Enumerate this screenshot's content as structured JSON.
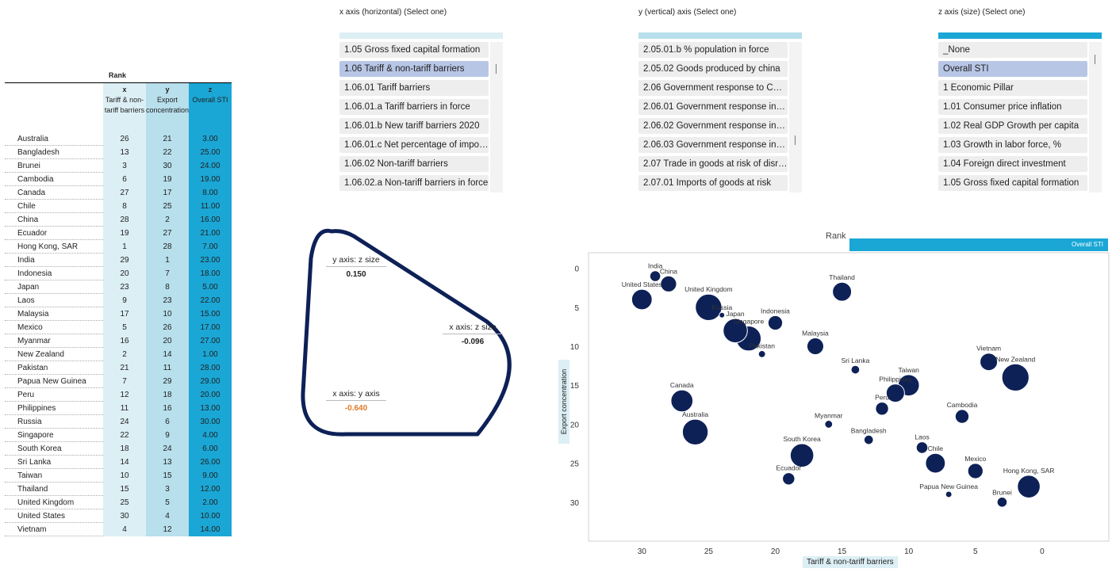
{
  "rank_table": {
    "title": "Rank",
    "headers": {
      "x": {
        "key": "x",
        "label": "Tariff & non-tariff barriers"
      },
      "y": {
        "key": "y",
        "label": "Export concentration"
      },
      "z": {
        "key": "z",
        "label": "Overall STI"
      }
    },
    "rows": [
      {
        "name": "Australia",
        "x": "26",
        "y": "21",
        "z": "3.00"
      },
      {
        "name": "Bangladesh",
        "x": "13",
        "y": "22",
        "z": "25.00"
      },
      {
        "name": "Brunei",
        "x": "3",
        "y": "30",
        "z": "24.00"
      },
      {
        "name": "Cambodia",
        "x": "6",
        "y": "19",
        "z": "19.00"
      },
      {
        "name": "Canada",
        "x": "27",
        "y": "17",
        "z": "8.00"
      },
      {
        "name": "Chile",
        "x": "8",
        "y": "25",
        "z": "11.00"
      },
      {
        "name": "China",
        "x": "28",
        "y": "2",
        "z": "16.00"
      },
      {
        "name": "Ecuador",
        "x": "19",
        "y": "27",
        "z": "21.00"
      },
      {
        "name": "Hong Kong, SAR",
        "x": "1",
        "y": "28",
        "z": "7.00"
      },
      {
        "name": "India",
        "x": "29",
        "y": "1",
        "z": "23.00"
      },
      {
        "name": "Indonesia",
        "x": "20",
        "y": "7",
        "z": "18.00"
      },
      {
        "name": "Japan",
        "x": "23",
        "y": "8",
        "z": "5.00"
      },
      {
        "name": "Laos",
        "x": "9",
        "y": "23",
        "z": "22.00"
      },
      {
        "name": "Malaysia",
        "x": "17",
        "y": "10",
        "z": "15.00"
      },
      {
        "name": "Mexico",
        "x": "5",
        "y": "26",
        "z": "17.00"
      },
      {
        "name": "Myanmar",
        "x": "16",
        "y": "20",
        "z": "27.00"
      },
      {
        "name": "New Zealand",
        "x": "2",
        "y": "14",
        "z": "1.00"
      },
      {
        "name": "Pakistan",
        "x": "21",
        "y": "11",
        "z": "28.00"
      },
      {
        "name": "Papua New Guinea",
        "x": "7",
        "y": "29",
        "z": "29.00"
      },
      {
        "name": "Peru",
        "x": "12",
        "y": "18",
        "z": "20.00"
      },
      {
        "name": "Philippines",
        "x": "11",
        "y": "16",
        "z": "13.00"
      },
      {
        "name": "Russia",
        "x": "24",
        "y": "6",
        "z": "30.00"
      },
      {
        "name": "Singapore",
        "x": "22",
        "y": "9",
        "z": "4.00"
      },
      {
        "name": "South Korea",
        "x": "18",
        "y": "24",
        "z": "6.00"
      },
      {
        "name": "Sri Lanka",
        "x": "14",
        "y": "13",
        "z": "26.00"
      },
      {
        "name": "Taiwan",
        "x": "10",
        "y": "15",
        "z": "9.00"
      },
      {
        "name": "Thailand",
        "x": "15",
        "y": "3",
        "z": "12.00"
      },
      {
        "name": "United Kingdom",
        "x": "25",
        "y": "5",
        "z": "2.00"
      },
      {
        "name": "United States",
        "x": "30",
        "y": "4",
        "z": "10.00"
      },
      {
        "name": "Vietnam",
        "x": "4",
        "y": "12",
        "z": "14.00"
      }
    ]
  },
  "selectors": {
    "x": {
      "title": "x axis (horizontal) (Select one)",
      "items": [
        "1.05 Gross fixed capital formation",
        "1.06 Tariff & non-tariff barriers",
        "1.06.01 Tariff barriers",
        "1.06.01.a Tariff barriers in force",
        "1.06.01.b New tariff barriers 2020",
        "1.06.01.c Net percentage of imports",
        "1.06.02 Non-tariff barriers",
        "1.06.02.a Non-tariff barriers in force"
      ],
      "selected": 1
    },
    "y": {
      "title": "y (vertical) axis (Select one)",
      "items": [
        "2.05.01.b % population in force",
        "2.05.02 Goods produced by china",
        "2.06 Government response to COVID",
        "2.06.01 Government response index",
        "2.06.02 Government response index",
        "2.06.03 Government response index",
        "2.07 Trade in goods at risk of disruption",
        "2.07.01 Imports of goods at risk"
      ],
      "selected": -1
    },
    "z": {
      "title": "z axis (size) (Select one)",
      "items": [
        "_None",
        "Overall STI",
        "1 Economic Pillar",
        "1.01 Consumer price inflation",
        "1.02 Real GDP Growth per capita",
        "1.03 Growth in labor force, %",
        "1.04 Foreign direct investment",
        "1.05 Gross fixed capital formation"
      ],
      "selected": 1
    }
  },
  "correlations": {
    "yz": {
      "label": "y axis: z size",
      "value": "0.150"
    },
    "xz": {
      "label": "x axis: z size",
      "value": "-0.096"
    },
    "xy": {
      "label": "x axis: y axis",
      "value": "-0.640"
    }
  },
  "colors": {
    "bubble": "#0d2157",
    "highlight": "#e07b28",
    "accent": "#1aa7d6",
    "light": "#dceff5",
    "mid": "#b8dfec"
  },
  "chart_data": {
    "type": "scatter",
    "header": "Rank",
    "size_label": "Overall STI",
    "xlabel": "Tariff & non-tariff barriers",
    "ylabel": "Export concentration",
    "xlim": [
      34,
      -5
    ],
    "ylim": [
      -2,
      35
    ],
    "xticks": [
      30,
      25,
      20,
      15,
      10,
      5,
      0
    ],
    "yticks": [
      0,
      5,
      10,
      15,
      20,
      25,
      30
    ],
    "points": [
      {
        "label": "Australia",
        "x": 26,
        "y": 21,
        "z": 3
      },
      {
        "label": "Bangladesh",
        "x": 13,
        "y": 22,
        "z": 25
      },
      {
        "label": "Brunei",
        "x": 3,
        "y": 30,
        "z": 24
      },
      {
        "label": "Cambodia",
        "x": 6,
        "y": 19,
        "z": 19
      },
      {
        "label": "Canada",
        "x": 27,
        "y": 17,
        "z": 8
      },
      {
        "label": "Chile",
        "x": 8,
        "y": 25,
        "z": 11
      },
      {
        "label": "China",
        "x": 28,
        "y": 2,
        "z": 16
      },
      {
        "label": "Ecuador",
        "x": 19,
        "y": 27,
        "z": 21
      },
      {
        "label": "Hong Kong, SAR",
        "x": 1,
        "y": 28,
        "z": 7
      },
      {
        "label": "India",
        "x": 29,
        "y": 1,
        "z": 23
      },
      {
        "label": "Indonesia",
        "x": 20,
        "y": 7,
        "z": 18
      },
      {
        "label": "Japan",
        "x": 23,
        "y": 8,
        "z": 5
      },
      {
        "label": "Laos",
        "x": 9,
        "y": 23,
        "z": 22
      },
      {
        "label": "Malaysia",
        "x": 17,
        "y": 10,
        "z": 15
      },
      {
        "label": "Mexico",
        "x": 5,
        "y": 26,
        "z": 17
      },
      {
        "label": "Myanmar",
        "x": 16,
        "y": 20,
        "z": 27
      },
      {
        "label": "New Zealand",
        "x": 2,
        "y": 14,
        "z": 1
      },
      {
        "label": "Pakistan",
        "x": 21,
        "y": 11,
        "z": 28
      },
      {
        "label": "Papua New Guinea",
        "x": 7,
        "y": 29,
        "z": 29
      },
      {
        "label": "Peru",
        "x": 12,
        "y": 18,
        "z": 20
      },
      {
        "label": "Philippines",
        "x": 11,
        "y": 16,
        "z": 13
      },
      {
        "label": "Russia",
        "x": 24,
        "y": 6,
        "z": 30
      },
      {
        "label": "Singapore",
        "x": 22,
        "y": 9,
        "z": 4
      },
      {
        "label": "South Korea",
        "x": 18,
        "y": 24,
        "z": 6
      },
      {
        "label": "Sri Lanka",
        "x": 14,
        "y": 13,
        "z": 26
      },
      {
        "label": "Taiwan",
        "x": 10,
        "y": 15,
        "z": 9
      },
      {
        "label": "Thailand",
        "x": 15,
        "y": 3,
        "z": 12
      },
      {
        "label": "United Kingdom",
        "x": 25,
        "y": 5,
        "z": 2
      },
      {
        "label": "United States",
        "x": 30,
        "y": 4,
        "z": 10
      },
      {
        "label": "Vietnam",
        "x": 4,
        "y": 12,
        "z": 14
      }
    ]
  }
}
